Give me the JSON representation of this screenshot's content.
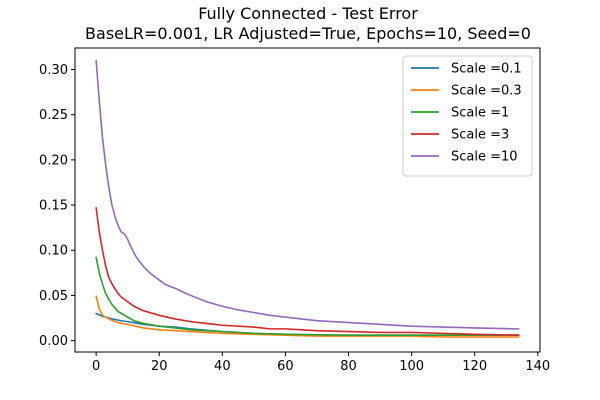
{
  "chart_data": {
    "type": "line",
    "title": "Fully Connected - Test Error",
    "subtitle": "BaseLR=0.001, LR Adjusted=True, Epochs=10, Seed=0",
    "xlabel": "",
    "ylabel": "",
    "xlim": [
      -6.7,
      140.7
    ],
    "ylim": [
      -0.0126,
      0.3238
    ],
    "x_ticks": [
      0,
      20,
      40,
      60,
      80,
      100,
      120,
      140
    ],
    "y_ticks": [
      0.0,
      0.05,
      0.1,
      0.15,
      0.2,
      0.25,
      0.3
    ],
    "x_tick_labels": [
      "0",
      "20",
      "40",
      "60",
      "80",
      "100",
      "120",
      "140"
    ],
    "y_tick_labels": [
      "0.00",
      "0.05",
      "0.10",
      "0.15",
      "0.20",
      "0.25",
      "0.30"
    ],
    "grid": false,
    "legend_position": "top-right",
    "series": [
      {
        "name": "Scale =0.1",
        "color": "#1f77b4",
        "points": [
          [
            0,
            0.03
          ],
          [
            2,
            0.027
          ],
          [
            5,
            0.024
          ],
          [
            8,
            0.022
          ],
          [
            10,
            0.021
          ],
          [
            15,
            0.018
          ],
          [
            20,
            0.016
          ],
          [
            25,
            0.015
          ],
          [
            30,
            0.013
          ],
          [
            40,
            0.01
          ],
          [
            50,
            0.008
          ],
          [
            60,
            0.007
          ],
          [
            70,
            0.006
          ],
          [
            80,
            0.006
          ],
          [
            90,
            0.006
          ],
          [
            100,
            0.006
          ],
          [
            110,
            0.006
          ],
          [
            120,
            0.006
          ],
          [
            134,
            0.006
          ]
        ]
      },
      {
        "name": "Scale =0.3",
        "color": "#ff7f0e",
        "points": [
          [
            0,
            0.049
          ],
          [
            1,
            0.035
          ],
          [
            2,
            0.028
          ],
          [
            4,
            0.024
          ],
          [
            6,
            0.021
          ],
          [
            8,
            0.019
          ],
          [
            10,
            0.018
          ],
          [
            15,
            0.014
          ],
          [
            20,
            0.012
          ],
          [
            25,
            0.011
          ],
          [
            30,
            0.01
          ],
          [
            40,
            0.008
          ],
          [
            50,
            0.007
          ],
          [
            60,
            0.006
          ],
          [
            70,
            0.005
          ],
          [
            80,
            0.005
          ],
          [
            90,
            0.005
          ],
          [
            100,
            0.005
          ],
          [
            110,
            0.004
          ],
          [
            120,
            0.004
          ],
          [
            134,
            0.004
          ]
        ]
      },
      {
        "name": "Scale =1",
        "color": "#2ca02c",
        "points": [
          [
            0,
            0.092
          ],
          [
            1,
            0.075
          ],
          [
            2,
            0.063
          ],
          [
            3,
            0.052
          ],
          [
            4,
            0.046
          ],
          [
            5,
            0.04
          ],
          [
            6,
            0.036
          ],
          [
            7,
            0.032
          ],
          [
            8,
            0.03
          ],
          [
            10,
            0.026
          ],
          [
            12,
            0.022
          ],
          [
            15,
            0.019
          ],
          [
            20,
            0.016
          ],
          [
            25,
            0.014
          ],
          [
            30,
            0.012
          ],
          [
            40,
            0.01
          ],
          [
            50,
            0.008
          ],
          [
            60,
            0.007
          ],
          [
            80,
            0.006
          ],
          [
            100,
            0.006
          ],
          [
            120,
            0.006
          ],
          [
            134,
            0.006
          ]
        ]
      },
      {
        "name": "Scale =3",
        "color": "#d62728",
        "points": [
          [
            0,
            0.147
          ],
          [
            1,
            0.12
          ],
          [
            2,
            0.1
          ],
          [
            3,
            0.083
          ],
          [
            4,
            0.07
          ],
          [
            5,
            0.063
          ],
          [
            6,
            0.057
          ],
          [
            7,
            0.052
          ],
          [
            8,
            0.048
          ],
          [
            10,
            0.043
          ],
          [
            12,
            0.038
          ],
          [
            15,
            0.033
          ],
          [
            20,
            0.028
          ],
          [
            25,
            0.024
          ],
          [
            30,
            0.021
          ],
          [
            35,
            0.019
          ],
          [
            40,
            0.017
          ],
          [
            50,
            0.015
          ],
          [
            55,
            0.013
          ],
          [
            60,
            0.013
          ],
          [
            65,
            0.012
          ],
          [
            70,
            0.011
          ],
          [
            80,
            0.01
          ],
          [
            90,
            0.009
          ],
          [
            100,
            0.009
          ],
          [
            110,
            0.008
          ],
          [
            120,
            0.007
          ],
          [
            134,
            0.006
          ]
        ]
      },
      {
        "name": "Scale =10",
        "color": "#9467bd",
        "points": [
          [
            0,
            0.31
          ],
          [
            1,
            0.265
          ],
          [
            2,
            0.225
          ],
          [
            3,
            0.195
          ],
          [
            4,
            0.17
          ],
          [
            5,
            0.15
          ],
          [
            6,
            0.137
          ],
          [
            7,
            0.127
          ],
          [
            8,
            0.12
          ],
          [
            9,
            0.118
          ],
          [
            10,
            0.112
          ],
          [
            11,
            0.104
          ],
          [
            12,
            0.097
          ],
          [
            13,
            0.091
          ],
          [
            15,
            0.082
          ],
          [
            17,
            0.075
          ],
          [
            20,
            0.067
          ],
          [
            22,
            0.062
          ],
          [
            25,
            0.058
          ],
          [
            28,
            0.053
          ],
          [
            30,
            0.05
          ],
          [
            35,
            0.043
          ],
          [
            40,
            0.038
          ],
          [
            45,
            0.034
          ],
          [
            50,
            0.031
          ],
          [
            55,
            0.028
          ],
          [
            60,
            0.026
          ],
          [
            65,
            0.024
          ],
          [
            70,
            0.022
          ],
          [
            80,
            0.02
          ],
          [
            90,
            0.018
          ],
          [
            100,
            0.016
          ],
          [
            110,
            0.015
          ],
          [
            120,
            0.014
          ],
          [
            134,
            0.013
          ]
        ]
      }
    ]
  }
}
